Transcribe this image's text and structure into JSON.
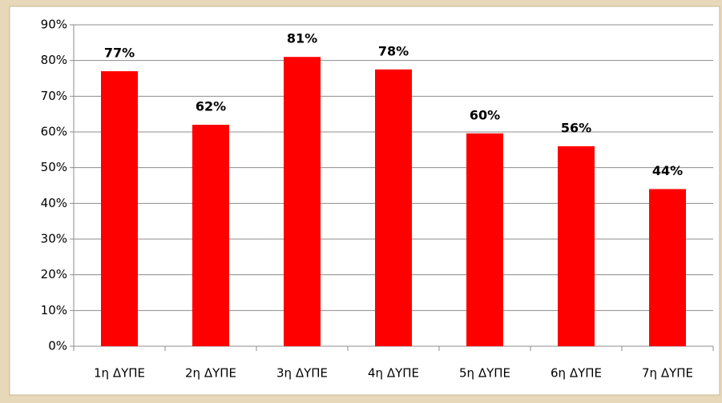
{
  "chart_data": {
    "type": "bar",
    "categories": [
      "1η ΔΥΠΕ",
      "2η ΔΥΠΕ",
      "3η ΔΥΠΕ",
      "4η ΔΥΠΕ",
      "5η ΔΥΠΕ",
      "6η ΔΥΠΕ",
      "7η ΔΥΠΕ"
    ],
    "values": [
      77,
      62,
      81,
      77.5,
      59.6,
      56,
      44
    ],
    "value_labels": [
      "77%",
      "62%",
      "81%",
      "78%",
      "60%",
      "56%",
      "44%"
    ],
    "color": "#ff0000",
    "ylim": [
      0,
      90
    ],
    "yticks": [
      {
        "value": 0,
        "label": "0%"
      },
      {
        "value": 10,
        "label": "10%"
      },
      {
        "value": 20,
        "label": "20%"
      },
      {
        "value": 30,
        "label": "30%"
      },
      {
        "value": 40,
        "label": "40%"
      },
      {
        "value": 50,
        "label": "50%"
      },
      {
        "value": 60,
        "label": "60%"
      },
      {
        "value": 70,
        "label": "70%"
      },
      {
        "value": 80,
        "label": "80%"
      },
      {
        "value": 90,
        "label": "90%"
      }
    ],
    "grid": true
  }
}
